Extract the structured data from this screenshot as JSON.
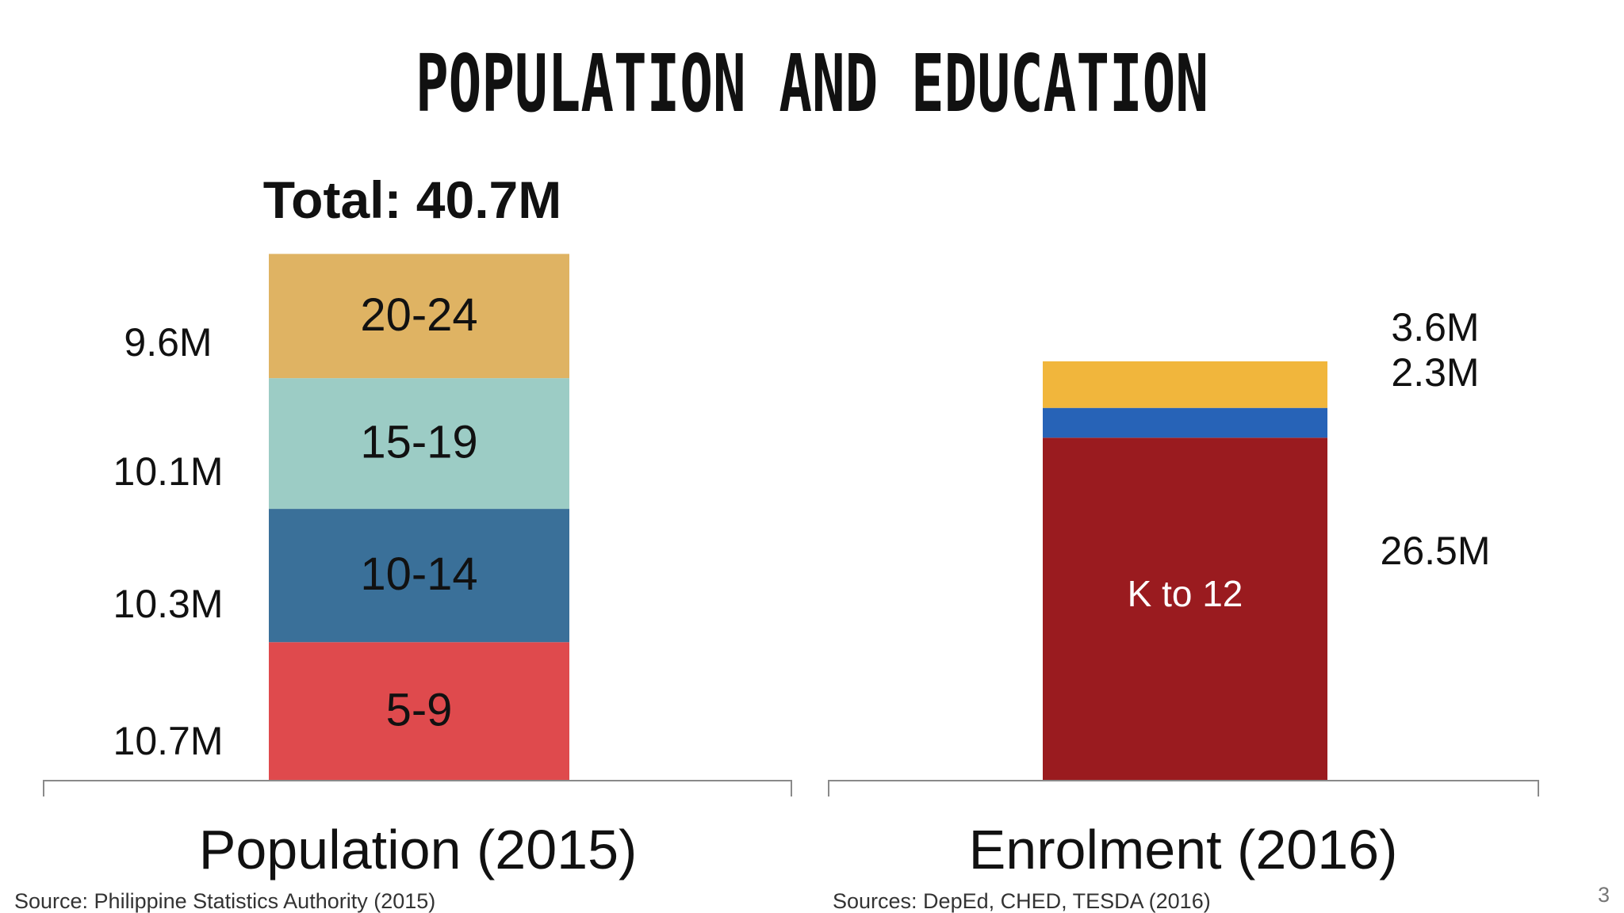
{
  "slide": {
    "title": "POPULATION AND EDUCATION",
    "page_number": "3"
  },
  "chart_data": [
    {
      "type": "bar",
      "stacked": true,
      "title": "Population (2015)",
      "total_label": "Total: 40.7M",
      "unit": "M",
      "segments": [
        {
          "name": "5-9",
          "value": 10.7,
          "label": "10.7M",
          "color": "#DF4A4D"
        },
        {
          "name": "10-14",
          "value": 10.3,
          "label": "10.3M",
          "color": "#3A7099"
        },
        {
          "name": "15-19",
          "value": 10.1,
          "label": "10.1M",
          "color": "#9CCCC5"
        },
        {
          "name": "20-24",
          "value": 9.6,
          "label": "9.6M",
          "color": "#DFB363"
        }
      ],
      "source": "Source: Philippine Statistics Authority (2015)"
    },
    {
      "type": "bar",
      "stacked": true,
      "title": "Enrolment (2016)",
      "unit": "M",
      "segments": [
        {
          "name": "K to 12",
          "value": 26.5,
          "label": "26.5M",
          "color": "#9A1B1F"
        },
        {
          "name": "",
          "value": 2.3,
          "label": "2.3M",
          "color": "#2763B7"
        },
        {
          "name": "",
          "value": 3.6,
          "label": "3.6M",
          "color": "#F1B63C"
        }
      ],
      "source": "Sources: DepEd, CHED, TESDA (2016)"
    }
  ]
}
